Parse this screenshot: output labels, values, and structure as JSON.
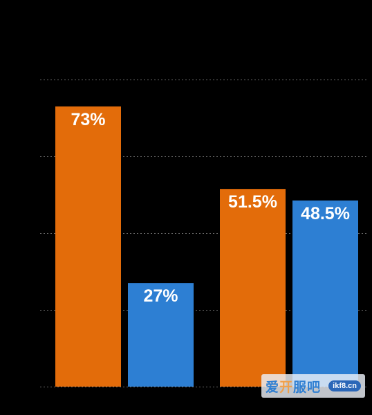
{
  "chart_data": {
    "type": "bar",
    "categories": [
      "",
      ""
    ],
    "series": [
      {
        "values": [
          73,
          51.5
        ],
        "value_labels": [
          "73%",
          "51.5%"
        ]
      },
      {
        "values": [
          27,
          48.5
        ],
        "value_labels": [
          "27%",
          "48.5%"
        ]
      }
    ],
    "ylim": [
      0,
      80
    ],
    "grid": true,
    "legend": "none",
    "colors": [
      "#e36c0a",
      "#2d7fd3"
    ],
    "grid_color": "#6e6e6e",
    "background": "#000000"
  },
  "watermark": {
    "text_a": "爱",
    "text_b": "开",
    "text_c": "服吧",
    "url": "ikf8.cn"
  }
}
